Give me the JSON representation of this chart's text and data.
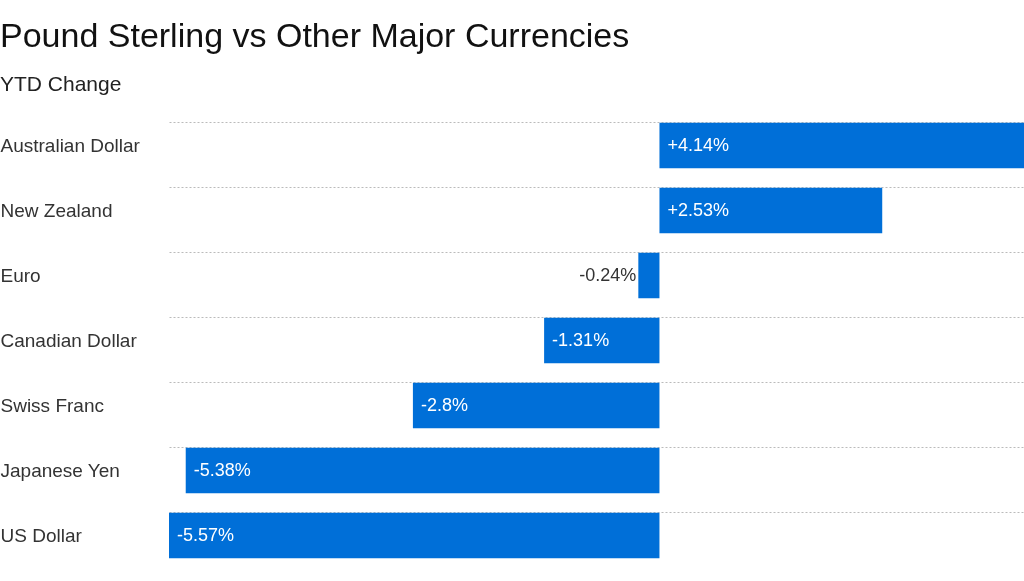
{
  "chart_data": {
    "type": "bar",
    "orientation": "horizontal",
    "title": "Pound Sterling vs Other Major Currencies",
    "subtitle": "YTD Change",
    "categories": [
      "Australian Dollar",
      "New Zealand",
      "Euro",
      "Canadian Dollar",
      "Swiss Franc",
      "Japanese Yen",
      "US Dollar"
    ],
    "values": [
      4.14,
      2.53,
      -0.24,
      -1.31,
      -2.8,
      -5.38,
      -5.57
    ],
    "value_labels": [
      "+4.14%",
      "+2.53%",
      "-0.24%",
      "-1.31%",
      "-2.8%",
      "-5.38%",
      "-5.57%"
    ],
    "color": "#006fd8",
    "xlim": [
      -5.57,
      4.14
    ],
    "grid": "y"
  }
}
